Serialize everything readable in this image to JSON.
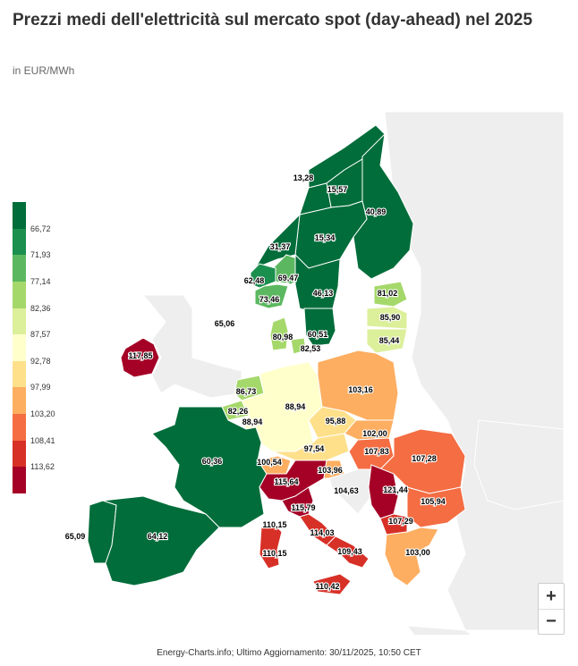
{
  "title": "Prezzi medi dell'elettricità sul mercato spot (day-ahead) nel 2025",
  "subtitle": "in EUR/MWh",
  "credits": "Energy-Charts.info; Ultimo Aggiornamento: 30/11/2025, 10:50 CET",
  "legend": {
    "colors": [
      "#006d3a",
      "#1a8f4e",
      "#5cb860",
      "#a5d86a",
      "#dcef9a",
      "#ffffcc",
      "#fee08b",
      "#fdae61",
      "#f46d43",
      "#d73027",
      "#a50026"
    ],
    "thresholds": [
      "66,72",
      "71,93",
      "77,14",
      "82,36",
      "87,57",
      "92,78",
      "97,99",
      "103,20",
      "108,41",
      "113,62"
    ]
  },
  "zoom": {
    "in_label": "+",
    "out_label": "−"
  },
  "regions": [
    {
      "id": "NO4",
      "value": "13,28"
    },
    {
      "id": "SE1",
      "value": "15,57"
    },
    {
      "id": "FI",
      "value": "40,89"
    },
    {
      "id": "SE2",
      "value": "15,34"
    },
    {
      "id": "NO3",
      "value": "31,37"
    },
    {
      "id": "NO1",
      "value": "69,47"
    },
    {
      "id": "NO5",
      "value": "62,48"
    },
    {
      "id": "NO2",
      "value": "73,46"
    },
    {
      "id": "SE3",
      "value": "46,13"
    },
    {
      "id": "LV_EE",
      "value": "81,02"
    },
    {
      "id": "LT",
      "value": "85,90"
    },
    {
      "id": "LT2",
      "value": "85,44"
    },
    {
      "id": "SE4",
      "value": "60,51"
    },
    {
      "id": "DK1",
      "value": "80,98"
    },
    {
      "id": "DK2",
      "value": "82,53"
    },
    {
      "id": "GB",
      "value": "65,06"
    },
    {
      "id": "IE",
      "value": "117,85"
    },
    {
      "id": "NL",
      "value": "86,73"
    },
    {
      "id": "DE",
      "value": "88,94"
    },
    {
      "id": "BE",
      "value": "82,26"
    },
    {
      "id": "LU",
      "value": "88,94"
    },
    {
      "id": "PL",
      "value": "103,16"
    },
    {
      "id": "CZ",
      "value": "95,88"
    },
    {
      "id": "SK",
      "value": "102,00"
    },
    {
      "id": "AT",
      "value": "97,54"
    },
    {
      "id": "HU",
      "value": "107,83"
    },
    {
      "id": "RO",
      "value": "107,28"
    },
    {
      "id": "FR",
      "value": "60,36"
    },
    {
      "id": "CH",
      "value": "100,54"
    },
    {
      "id": "IT_N",
      "value": "115,64"
    },
    {
      "id": "SI",
      "value": "103,96"
    },
    {
      "id": "HR",
      "value": "104,63"
    },
    {
      "id": "RS",
      "value": "121,44"
    },
    {
      "id": "BG",
      "value": "105,94"
    },
    {
      "id": "PT",
      "value": "65,09"
    },
    {
      "id": "ES",
      "value": "64,12"
    },
    {
      "id": "IT_CN",
      "value": "115,79"
    },
    {
      "id": "IT_SARD1",
      "value": "110,15"
    },
    {
      "id": "IT_SARD2",
      "value": "110,15"
    },
    {
      "id": "IT_CS",
      "value": "114,03"
    },
    {
      "id": "MK",
      "value": "107,29"
    },
    {
      "id": "IT_S",
      "value": "109,43"
    },
    {
      "id": "GR",
      "value": "103,00"
    },
    {
      "id": "IT_SIC",
      "value": "110,42"
    }
  ]
}
